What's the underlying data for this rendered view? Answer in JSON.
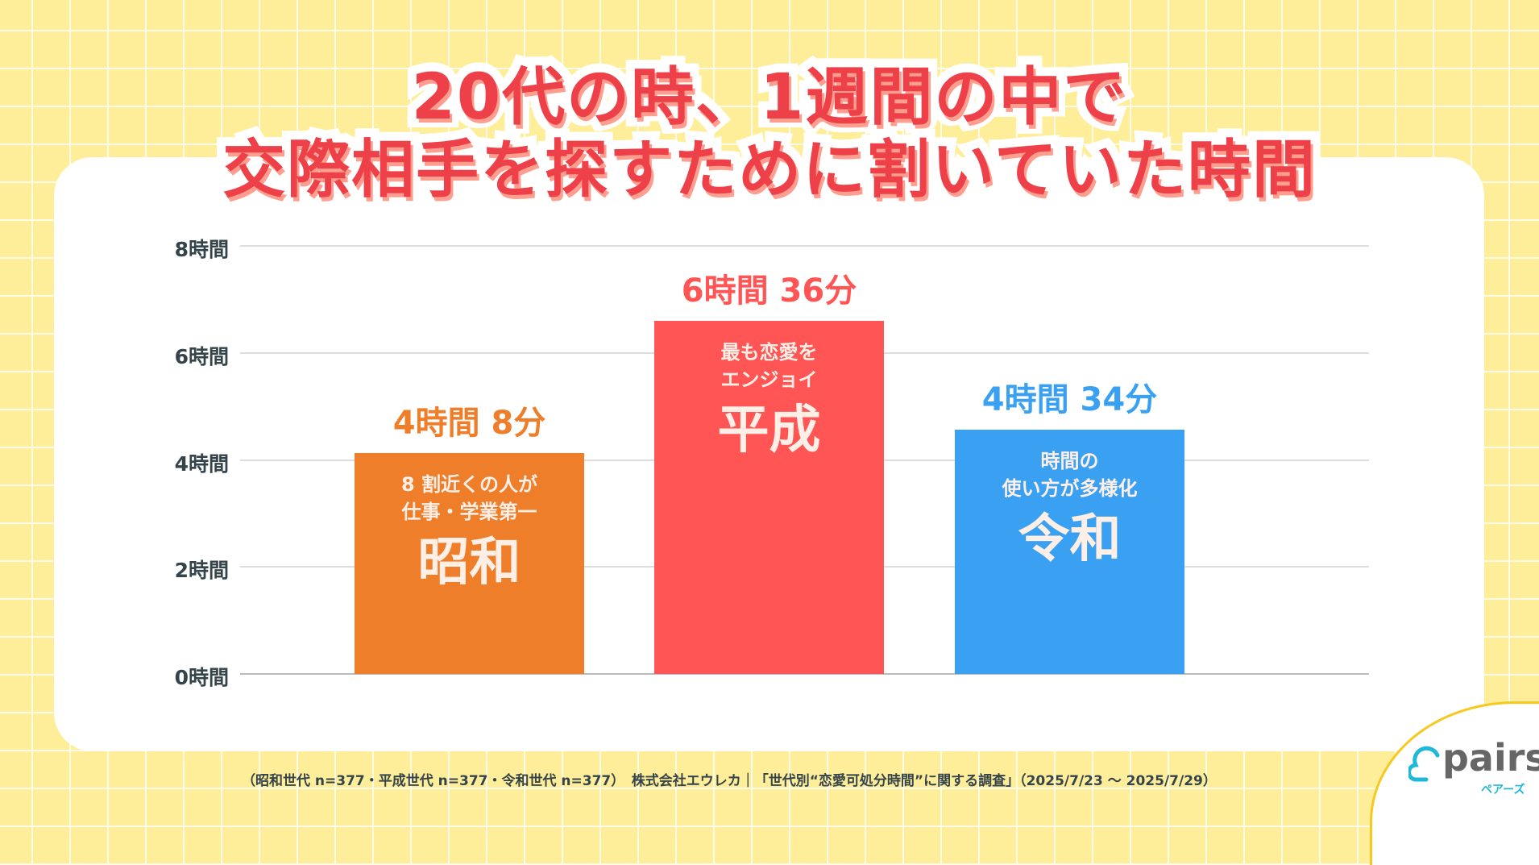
{
  "title": {
    "line1": "20代の時、1週間の中で",
    "line2": "交際相手を探すために割いていた時間"
  },
  "chart_data": {
    "type": "bar",
    "title": "20代の時、1週間の中で交際相手を探すために割いていた時間",
    "categories": [
      "昭和",
      "平成",
      "令和"
    ],
    "values": [
      4.133,
      6.6,
      4.567
    ],
    "value_labels": [
      "4時間 8分",
      "6時間 36分",
      "4時間 34分"
    ],
    "bar_notes": [
      [
        "8 割近くの人が",
        "仕事・学業第一"
      ],
      [
        "最も恋愛を",
        "エンジョイ"
      ],
      [
        "時間の",
        "使い方が多様化"
      ]
    ],
    "colors": [
      "#EF7E2A",
      "#FF5555",
      "#3AA1F2"
    ],
    "ylim": [
      0,
      8
    ],
    "yticks": [
      "0時間",
      "2時間",
      "4時間",
      "6時間",
      "8時間"
    ],
    "grid": true
  },
  "footer": "（昭和世代 n=377・平成世代 n=377・令和世代 n=377）　株式会社エウレカ｜「世代別“恋愛可処分時間”に関する調査」（2025/7/23 〜 2025/7/29）",
  "logo": {
    "text": "pairs",
    "kana": "ペアーズ"
  }
}
